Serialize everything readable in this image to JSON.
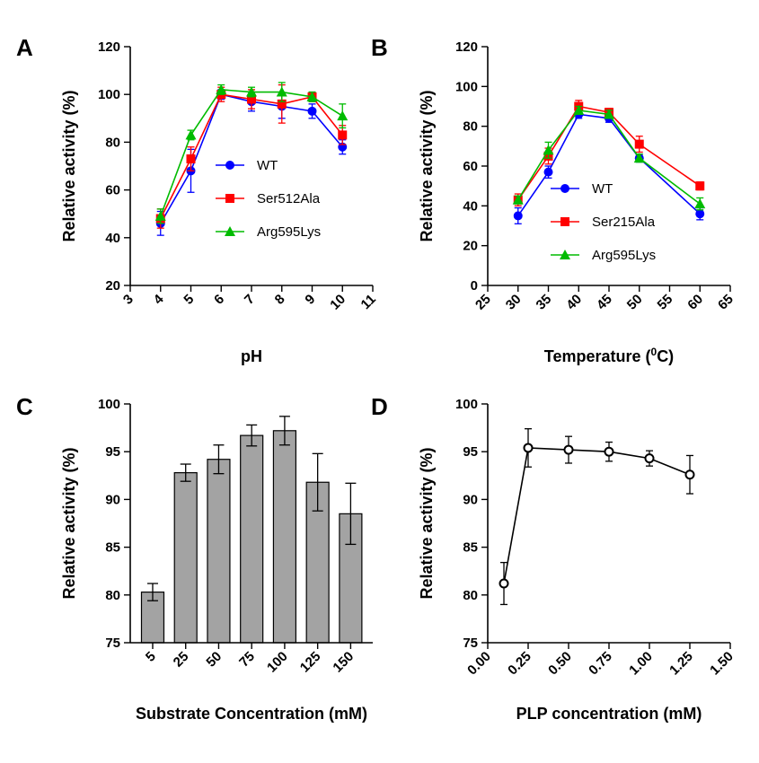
{
  "chart_data": [
    {
      "panel": "A",
      "type": "line",
      "xlabel": "pH",
      "ylabel": "Relative activity (%)",
      "xlim": [
        3,
        11
      ],
      "ylim": [
        20,
        120
      ],
      "xticks": [
        3,
        4,
        5,
        6,
        7,
        8,
        9,
        10,
        11
      ],
      "yticks": [
        20,
        40,
        60,
        80,
        100,
        120
      ],
      "legend_position": "center-right",
      "x": [
        4,
        5,
        6,
        7,
        8,
        9,
        10
      ],
      "series": [
        {
          "name": "WT",
          "color": "#0000ff",
          "marker": "circle",
          "values": [
            46,
            68,
            100,
            97,
            95,
            93,
            78
          ],
          "errors": [
            5,
            9,
            2,
            4,
            5,
            3,
            3
          ]
        },
        {
          "name": "Ser512Ala",
          "color": "#ff0000",
          "marker": "square",
          "values": [
            48,
            73,
            100,
            98,
            96,
            99,
            83
          ],
          "errors": [
            4,
            5,
            3,
            4,
            8,
            2,
            4
          ]
        },
        {
          "name": "Arg595Lys",
          "color": "#00bb00",
          "marker": "triangle",
          "values": [
            49,
            83,
            102,
            101,
            101,
            99,
            91
          ],
          "errors": [
            3,
            2,
            2,
            2,
            4,
            2,
            5
          ]
        }
      ]
    },
    {
      "panel": "B",
      "type": "line",
      "xlabel": "Temperature (",
      "xlabel_sup": "0",
      "xlabel_end": "C)",
      "ylabel": "Relative activity (%)",
      "xlim": [
        25,
        65
      ],
      "ylim": [
        0,
        120
      ],
      "xticks": [
        25,
        30,
        35,
        40,
        45,
        50,
        55,
        60,
        65
      ],
      "yticks": [
        0,
        20,
        40,
        60,
        80,
        100,
        120
      ],
      "legend_position": "lower-right",
      "x": [
        30,
        35,
        40,
        45,
        50,
        60
      ],
      "series": [
        {
          "name": "WT",
          "color": "#0000ff",
          "marker": "circle",
          "values": [
            35,
            57,
            86,
            84,
            64,
            36
          ],
          "errors": [
            4,
            3,
            2,
            2,
            2,
            3
          ]
        },
        {
          "name": "Ser215Ala",
          "color": "#ff0000",
          "marker": "square",
          "values": [
            43,
            65,
            90,
            87,
            71,
            50
          ],
          "errors": [
            3,
            4,
            3,
            2,
            4,
            2
          ]
        },
        {
          "name": "Arg595Lys",
          "color": "#00bb00",
          "marker": "triangle",
          "values": [
            43,
            68,
            88,
            86,
            64,
            41
          ],
          "errors": [
            2,
            4,
            2,
            2,
            2,
            3
          ]
        }
      ]
    },
    {
      "panel": "C",
      "type": "bar",
      "xlabel": "Substrate Concentration (mM)",
      "ylabel": "Relative activity (%)",
      "ylim": [
        75,
        100
      ],
      "yticks": [
        75,
        80,
        85,
        90,
        95,
        100
      ],
      "categories": [
        "5",
        "25",
        "50",
        "75",
        "100",
        "125",
        "150"
      ],
      "values": [
        80.3,
        92.8,
        94.2,
        96.7,
        97.2,
        91.8,
        88.5
      ],
      "errors": [
        0.9,
        0.9,
        1.5,
        1.1,
        1.5,
        3.0,
        3.2
      ],
      "bar_color": "#a3a3a3"
    },
    {
      "panel": "D",
      "type": "line",
      "xlabel": "PLP concentration (mM)",
      "ylabel": "Relative activity (%)",
      "xlim": [
        0,
        1.5
      ],
      "ylim": [
        75,
        100
      ],
      "xticks": [
        "0.00",
        "0.25",
        "0.50",
        "0.75",
        "1.00",
        "1.25",
        "1.50"
      ],
      "yticks": [
        75,
        80,
        85,
        90,
        95,
        100
      ],
      "x": [
        0.1,
        0.25,
        0.5,
        0.75,
        1.0,
        1.25
      ],
      "series": [
        {
          "color": "#000000",
          "marker": "open-circle",
          "values": [
            81.2,
            95.4,
            95.2,
            95.0,
            94.3,
            92.6
          ],
          "errors": [
            2.2,
            2.0,
            1.4,
            1.0,
            0.8,
            2.0
          ]
        }
      ]
    }
  ]
}
